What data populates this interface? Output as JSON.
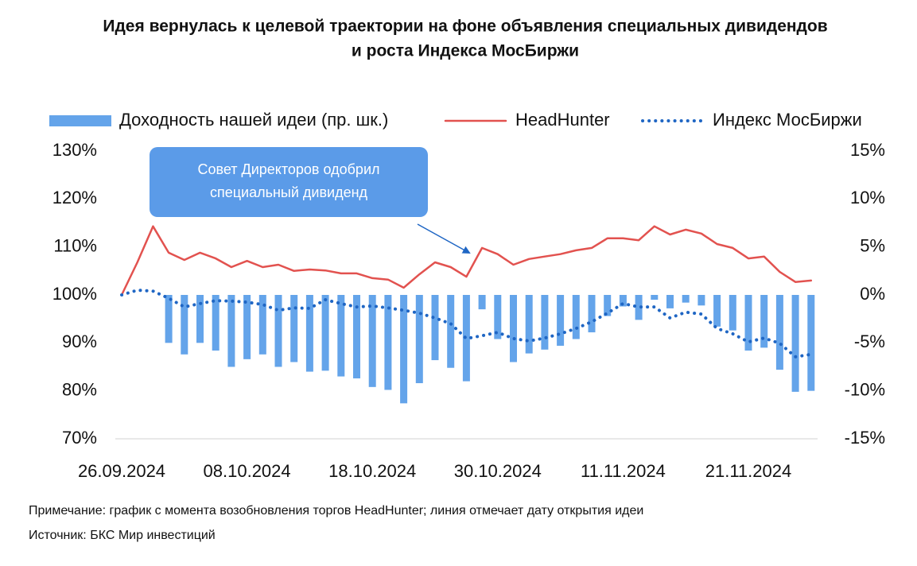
{
  "chart_data": {
    "type": "combo",
    "title": [
      "Идея вернулась к целевой траектории на фоне объявления специальных дивидендов",
      "и роста Индекса МосБиржи"
    ],
    "annotation": [
      "Совет Директоров одобрил",
      "специальный дивиденд"
    ],
    "notes": [
      "Примечание: график с момента возобновления торгов HeadHunter; линия отмечает дату открытия идеи",
      "Источник: БКС Мир инвестиций"
    ],
    "categories": [
      "26.09.2024",
      null,
      null,
      null,
      null,
      null,
      null,
      null,
      "08.10.2024",
      null,
      null,
      null,
      null,
      null,
      null,
      null,
      "18.10.2024",
      null,
      null,
      null,
      null,
      null,
      null,
      null,
      "30.10.2024",
      null,
      null,
      null,
      null,
      null,
      null,
      null,
      "11.11.2024",
      null,
      null,
      null,
      null,
      null,
      null,
      null,
      "21.11.2024",
      null,
      null,
      null,
      null
    ],
    "ylim": [
      70,
      130
    ],
    "yticks": [
      {
        "value": 70,
        "label": "70%"
      },
      {
        "value": 80,
        "label": "80%"
      },
      {
        "value": 90,
        "label": "90%"
      },
      {
        "value": 100,
        "label": "100%"
      },
      {
        "value": 110,
        "label": "110%"
      },
      {
        "value": 120,
        "label": "120%"
      },
      {
        "value": 130,
        "label": "130%"
      }
    ],
    "y2lim": [
      -15,
      15
    ],
    "y2ticks": [
      {
        "value": -15,
        "label": "-15%"
      },
      {
        "value": -10,
        "label": "-10%"
      },
      {
        "value": -5,
        "label": "-5%"
      },
      {
        "value": 0,
        "label": "0%"
      },
      {
        "value": 5,
        "label": "5%"
      },
      {
        "value": 10,
        "label": "10%"
      },
      {
        "value": 15,
        "label": "15%"
      }
    ],
    "grid": false,
    "legend": "top",
    "series": [
      {
        "name": "Доходность нашей идеи (пр. шк.)",
        "type": "bar",
        "axis": "y2",
        "color": "#64a4ea",
        "values": [
          0,
          0,
          0,
          -5.0,
          -6.2,
          -5.0,
          -5.8,
          -7.5,
          -6.7,
          -6.2,
          -7.5,
          -7.0,
          -8.0,
          -7.9,
          -8.5,
          -8.7,
          -9.6,
          -9.9,
          -11.3,
          -9.2,
          -6.8,
          -7.6,
          -9.0,
          -1.5,
          -4.6,
          -7.0,
          -6.1,
          -5.7,
          -5.3,
          -4.6,
          -3.9,
          -2.2,
          -1.2,
          -2.6,
          -0.5,
          -1.4,
          -0.8,
          -1.1,
          -3.3,
          -3.7,
          -5.8,
          -5.5,
          -7.8,
          -10.1,
          -10.0
        ]
      },
      {
        "name": "HeadHunter",
        "type": "line",
        "dash": "solid",
        "color": "#e2524f",
        "values": [
          100,
          106.8,
          114.3,
          108.8,
          107.3,
          108.8,
          107.6,
          105.8,
          107.1,
          105.8,
          106.3,
          105.0,
          105.3,
          105.1,
          104.5,
          104.5,
          103.5,
          103.2,
          101.5,
          104.3,
          106.8,
          105.8,
          103.8,
          109.8,
          108.5,
          106.3,
          107.5,
          108.0,
          108.5,
          109.3,
          109.8,
          111.8,
          111.8,
          111.4,
          114.3,
          112.6,
          113.6,
          112.8,
          110.6,
          109.8,
          107.6,
          108.0,
          104.8,
          102.7,
          103.0
        ]
      },
      {
        "name": "Индекс МосБиржи",
        "type": "line",
        "dash": "dotted",
        "color": "#1f66c4",
        "values": [
          100,
          101.0,
          100.8,
          99.3,
          97.5,
          98.2,
          98.8,
          98.7,
          98.5,
          98.0,
          96.8,
          97.3,
          97.2,
          99.0,
          98.2,
          97.5,
          97.7,
          97.3,
          96.8,
          96.2,
          95.2,
          94.0,
          90.9,
          91.5,
          92.2,
          90.9,
          90.4,
          91.0,
          91.9,
          93.0,
          94.4,
          96.2,
          98.2,
          97.5,
          97.5,
          95.2,
          96.4,
          96.0,
          93.0,
          91.9,
          90.2,
          91.0,
          89.9,
          87.1,
          87.6
        ]
      }
    ]
  }
}
